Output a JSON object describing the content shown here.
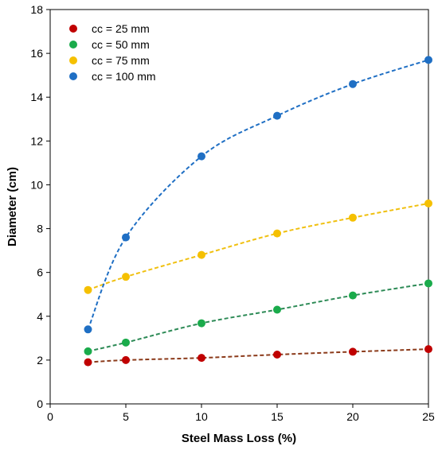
{
  "chart_data": {
    "type": "scatter",
    "title": "",
    "xlabel": "Steel Mass Loss (%)",
    "ylabel": "Diameter (cm)",
    "xlim": [
      0,
      25
    ],
    "ylim": [
      0,
      18
    ],
    "xticks": [
      0,
      5,
      10,
      15,
      20,
      25
    ],
    "yticks": [
      0,
      2,
      4,
      6,
      8,
      10,
      12,
      14,
      16,
      18
    ],
    "grid": false,
    "legend_position": "top-left",
    "trendlines": "dashed",
    "series": [
      {
        "name": "cc = 25 mm",
        "color": "#c00000",
        "line_color": "#8b3a1a",
        "x": [
          2.5,
          5,
          10,
          15,
          20,
          25
        ],
        "y": [
          1.9,
          2.0,
          2.1,
          2.25,
          2.38,
          2.5
        ]
      },
      {
        "name": "cc = 50 mm",
        "color": "#1aab4b",
        "line_color": "#2e8b57",
        "x": [
          2.5,
          5,
          10,
          15,
          20,
          25
        ],
        "y": [
          2.4,
          2.8,
          3.68,
          4.3,
          4.95,
          5.5
        ]
      },
      {
        "name": "cc = 75 mm",
        "color": "#f5c000",
        "line_color": "#f0c010",
        "x": [
          2.5,
          5,
          10,
          15,
          20,
          25
        ],
        "y": [
          5.2,
          5.8,
          6.8,
          7.78,
          8.5,
          9.15
        ]
      },
      {
        "name": "cc = 100 mm",
        "color": "#1f6fc4",
        "line_color": "#1f6fc4",
        "x": [
          2.5,
          5,
          10,
          15,
          20,
          25
        ],
        "y": [
          3.4,
          7.6,
          11.3,
          13.15,
          14.6,
          15.7
        ]
      }
    ]
  }
}
